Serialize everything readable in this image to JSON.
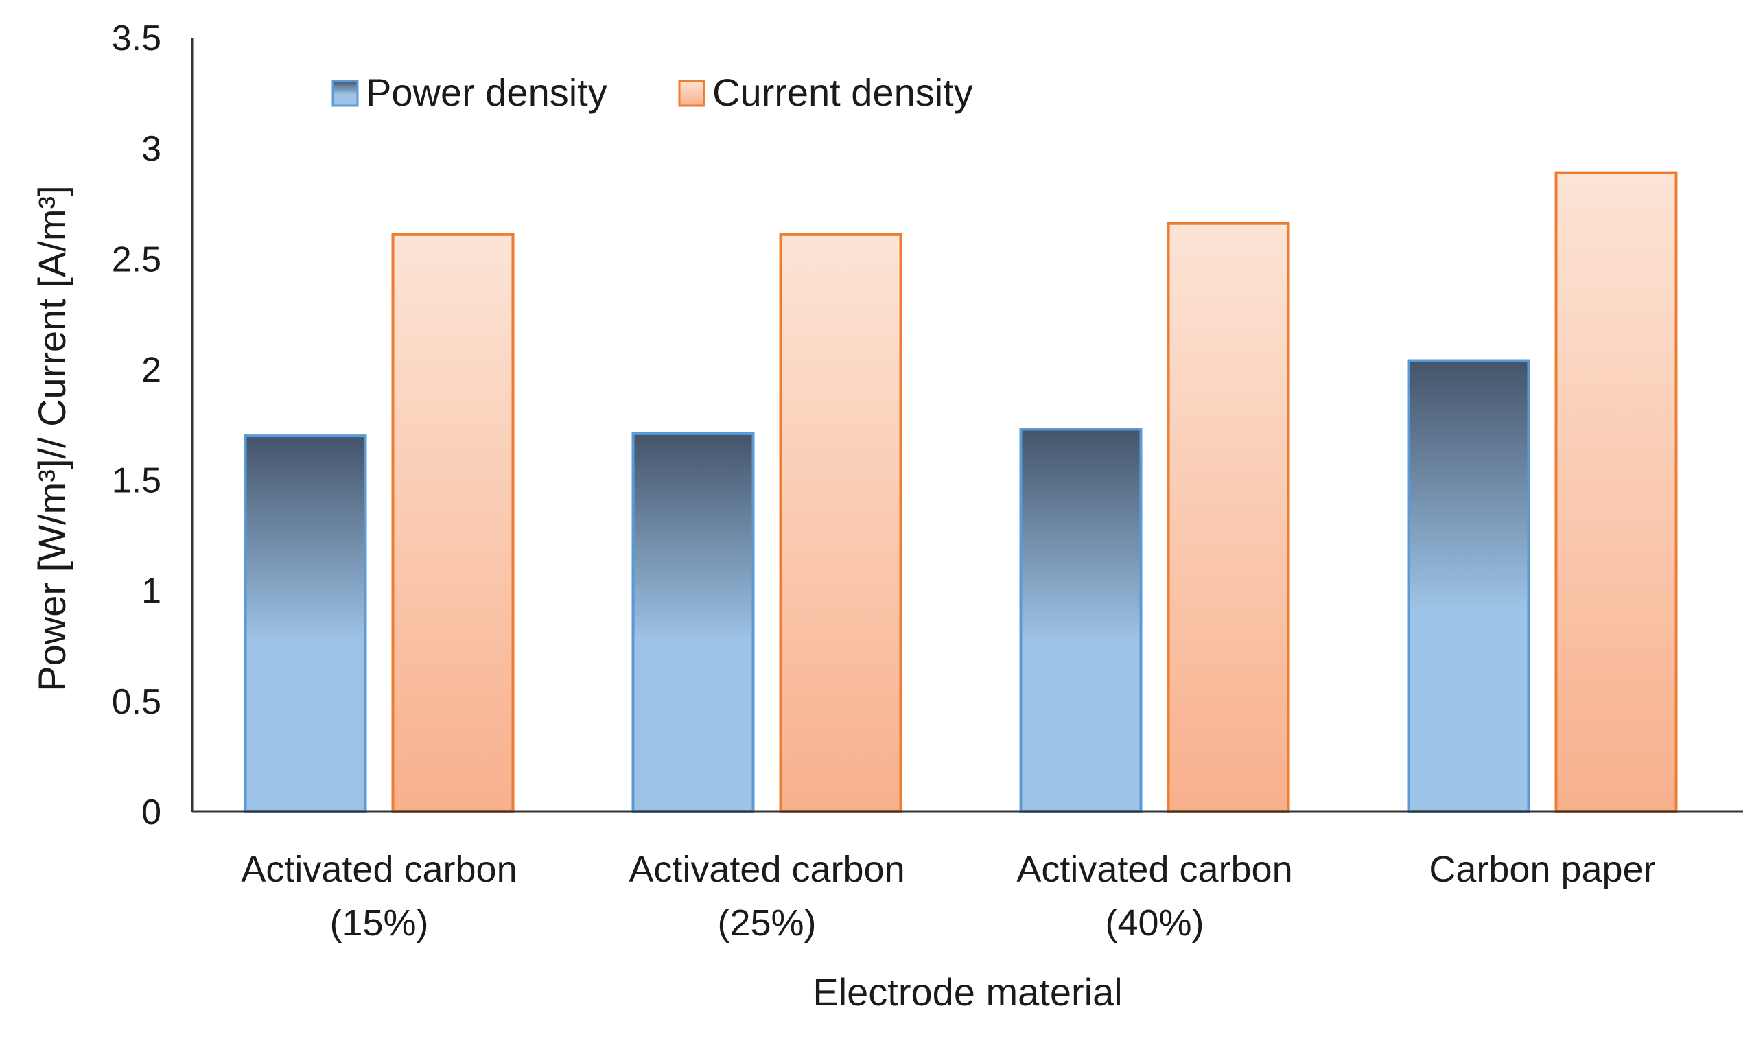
{
  "chart_data": {
    "type": "bar",
    "categories": [
      [
        "Activated carbon",
        "(15%)"
      ],
      [
        "Activated carbon",
        "(25%)"
      ],
      [
        "Activated carbon",
        "(40%)"
      ],
      [
        "Carbon paper"
      ]
    ],
    "series": [
      {
        "name": "Power density",
        "values": [
          1.7,
          1.71,
          1.73,
          2.04
        ],
        "color_top": "#44546a",
        "color_bottom": "#9dc3e6",
        "stroke": "#5b9bd5"
      },
      {
        "name": "Current density",
        "values": [
          2.61,
          2.61,
          2.66,
          2.89
        ],
        "color_top": "#fce4d6",
        "color_bottom": "#f8b08c",
        "stroke": "#ed7d31"
      }
    ],
    "title": "",
    "xlabel": "Electrode material",
    "ylabel": "Power [W/m³]// Current [A/m³]",
    "ylim": [
      0,
      3.5
    ],
    "yticks": [
      "0",
      "0.5",
      "1",
      "1.5",
      "2",
      "2.5",
      "3",
      "3.5"
    ],
    "grid": false,
    "legend": "top-left"
  }
}
